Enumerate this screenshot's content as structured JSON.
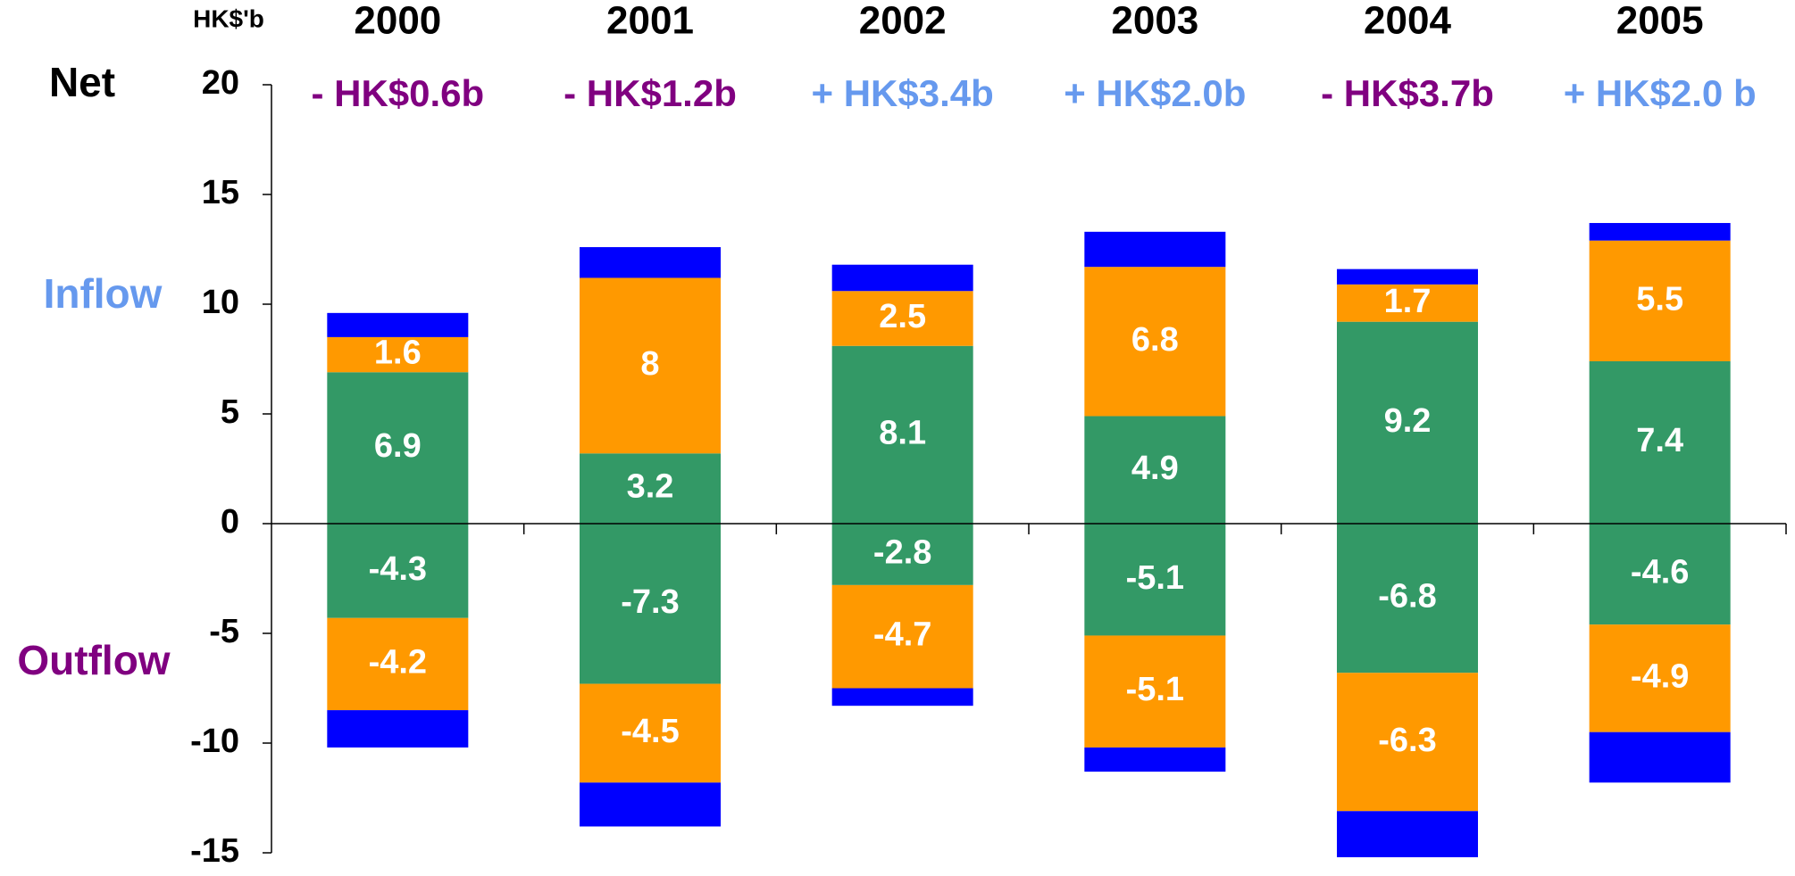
{
  "chart_data": {
    "type": "bar",
    "stacked": true,
    "unit_label": "HK$'b",
    "side_labels": [
      {
        "text": "Net",
        "color": "#000000"
      },
      {
        "text": "Inflow",
        "color": "#6699ee"
      },
      {
        "text": "Outflow",
        "color": "#800080"
      }
    ],
    "categories": [
      "2000",
      "2001",
      "2002",
      "2003",
      "2004",
      "2005"
    ],
    "annotations": [
      {
        "text": "- HK$0.6b",
        "color": "#800080"
      },
      {
        "text": "- HK$1.2b",
        "color": "#800080"
      },
      {
        "text": "+ HK$3.4b",
        "color": "#6699ee"
      },
      {
        "text": "+ HK$2.0b",
        "color": "#6699ee"
      },
      {
        "text": "- HK$3.7b",
        "color": "#800080"
      },
      {
        "text": "+ HK$2.0 b",
        "color": "#6699ee"
      }
    ],
    "series": [
      {
        "color": "#339966",
        "show_labels": true,
        "values": [
          6.9,
          3.2,
          8.1,
          4.9,
          9.2,
          7.4
        ]
      },
      {
        "color": "#ff9900",
        "show_labels": true,
        "values": [
          1.6,
          8.0,
          2.5,
          6.8,
          1.7,
          5.5
        ]
      },
      {
        "color": "#0000ff",
        "show_labels": false,
        "values": [
          1.1,
          1.4,
          1.2,
          1.6,
          0.7,
          0.8
        ]
      },
      {
        "color": "#339966",
        "show_labels": true,
        "values": [
          -4.3,
          -7.3,
          -2.8,
          -5.1,
          -6.8,
          -4.6
        ]
      },
      {
        "color": "#ff9900",
        "show_labels": true,
        "values": [
          -4.2,
          -4.5,
          -4.7,
          -5.1,
          -6.3,
          -4.9
        ]
      },
      {
        "color": "#0000ff",
        "show_labels": false,
        "values": [
          -1.7,
          -2.0,
          -0.8,
          -1.1,
          -2.1,
          -2.3
        ]
      }
    ],
    "ylim": [
      -15,
      20
    ],
    "yticks": [
      -15,
      -10,
      -5,
      0,
      5,
      10,
      15,
      20
    ],
    "grid": false
  }
}
